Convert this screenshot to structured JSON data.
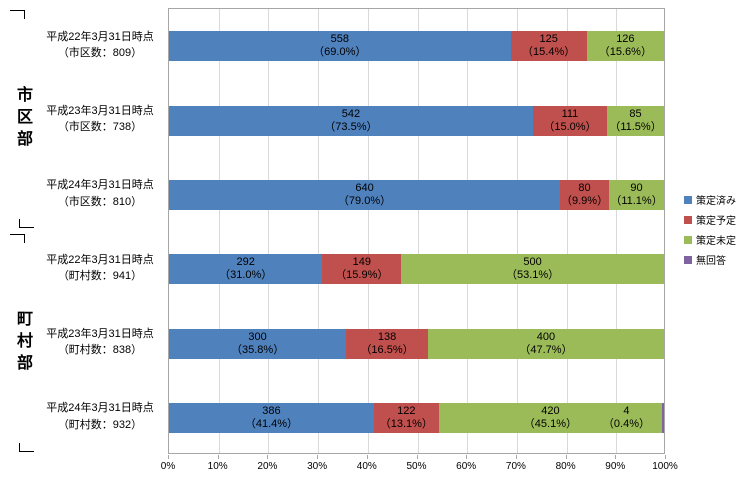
{
  "chart_data": {
    "type": "bar",
    "orientation": "horizontal",
    "stacked": true,
    "value_mode": "percent_of_total",
    "xlim": [
      0,
      100
    ],
    "grid": true,
    "x_ticks": [
      "0%",
      "10%",
      "20%",
      "30%",
      "40%",
      "50%",
      "60%",
      "70%",
      "80%",
      "90%",
      "100%"
    ],
    "series": [
      {
        "name": "策定済み",
        "color": "#4F81BD"
      },
      {
        "name": "策定予定",
        "color": "#C0504D"
      },
      {
        "name": "策定未定",
        "color": "#9BBB59"
      },
      {
        "name": "無回答",
        "color": "#8064A2"
      }
    ],
    "legend_position": "right",
    "groups": [
      {
        "label": "市区部",
        "rows": [
          {
            "label_line1": "平成22年3月31日時点",
            "label_line2": "（市区数：809）",
            "segments": [
              {
                "series": "策定済み",
                "value": 558,
                "pct": 69.0,
                "pct_label": "（69.0%）"
              },
              {
                "series": "策定予定",
                "value": 125,
                "pct": 15.4,
                "pct_label": "（15.4%）"
              },
              {
                "series": "策定未定",
                "value": 126,
                "pct": 15.6,
                "pct_label": "（15.6%）"
              }
            ]
          },
          {
            "label_line1": "平成23年3月31日時点",
            "label_line2": "（市区数：738）",
            "segments": [
              {
                "series": "策定済み",
                "value": 542,
                "pct": 73.5,
                "pct_label": "（73.5%）"
              },
              {
                "series": "策定予定",
                "value": 111,
                "pct": 15.0,
                "pct_label": "（15.0%）"
              },
              {
                "series": "策定未定",
                "value": 85,
                "pct": 11.5,
                "pct_label": "（11.5%）"
              }
            ]
          },
          {
            "label_line1": "平成24年3月31日時点",
            "label_line2": "（市区数：810）",
            "segments": [
              {
                "series": "策定済み",
                "value": 640,
                "pct": 79.0,
                "pct_label": "（79.0%）"
              },
              {
                "series": "策定予定",
                "value": 80,
                "pct": 9.9,
                "pct_label": "（9.9%）"
              },
              {
                "series": "策定未定",
                "value": 90,
                "pct": 11.1,
                "pct_label": "（11.1%）"
              }
            ]
          }
        ]
      },
      {
        "label": "町村部",
        "rows": [
          {
            "label_line1": "平成22年3月31日時点",
            "label_line2": "（町村数：941）",
            "segments": [
              {
                "series": "策定済み",
                "value": 292,
                "pct": 31.0,
                "pct_label": "（31.0%）"
              },
              {
                "series": "策定予定",
                "value": 149,
                "pct": 15.9,
                "pct_label": "（15.9%）"
              },
              {
                "series": "策定未定",
                "value": 500,
                "pct": 53.1,
                "pct_label": "（53.1%）"
              }
            ]
          },
          {
            "label_line1": "平成23年3月31日時点",
            "label_line2": "（町村数：838）",
            "segments": [
              {
                "series": "策定済み",
                "value": 300,
                "pct": 35.8,
                "pct_label": "（35.8%）"
              },
              {
                "series": "策定予定",
                "value": 138,
                "pct": 16.5,
                "pct_label": "（16.5%）"
              },
              {
                "series": "策定未定",
                "value": 400,
                "pct": 47.7,
                "pct_label": "（47.7%）"
              }
            ]
          },
          {
            "label_line1": "平成24年3月31日時点",
            "label_line2": "（町村数：932）",
            "segments": [
              {
                "series": "策定済み",
                "value": 386,
                "pct": 41.4,
                "pct_label": "（41.4%）"
              },
              {
                "series": "策定予定",
                "value": 122,
                "pct": 13.1,
                "pct_label": "（13.1%）"
              },
              {
                "series": "策定未定",
                "value": 420,
                "pct": 45.1,
                "pct_label": "（45.1%）"
              },
              {
                "series": "無回答",
                "value": 4,
                "pct": 0.4,
                "pct_label": "（0.4%）"
              }
            ]
          }
        ]
      }
    ]
  }
}
